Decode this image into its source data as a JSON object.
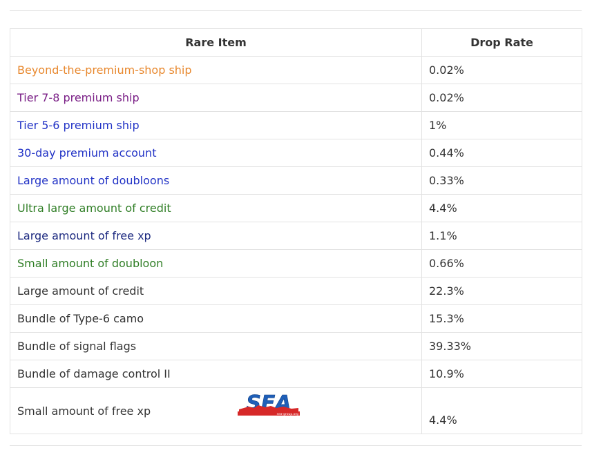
{
  "table": {
    "headers": [
      "Rare Item",
      "Drop Rate"
    ],
    "rows": [
      {
        "item": "Beyond-the-premium-shop ship",
        "rate": "0.02%",
        "color": "#e8882e"
      },
      {
        "item": "Tier 7-8 premium ship",
        "rate": "0.02%",
        "color": "#7a1f86"
      },
      {
        "item": "Tier 5-6 premium ship",
        "rate": "1%",
        "color": "#2233c6"
      },
      {
        "item": "30-day premium account",
        "rate": "0.44%",
        "color": "#2233c6"
      },
      {
        "item": "Large amount of doubloons",
        "rate": "0.33%",
        "color": "#2233c6"
      },
      {
        "item": "Ultra large amount of credit",
        "rate": "4.4%",
        "color": "#2e7d24"
      },
      {
        "item": "Large amount of free xp",
        "rate": "1.1%",
        "color": "#1d2a80"
      },
      {
        "item": "Small amount of doubloon",
        "rate": "0.66%",
        "color": "#2e7d24"
      },
      {
        "item": "Large amount of credit",
        "rate": "22.3%",
        "color": "#333333"
      },
      {
        "item": "Bundle of Type-6 camo",
        "rate": "15.3%",
        "color": "#333333"
      },
      {
        "item": "Bundle of signal flags",
        "rate": "39.33%",
        "color": "#333333"
      },
      {
        "item": "Bundle of damage control II",
        "rate": "10.9%",
        "color": "#333333"
      },
      {
        "item": "Small amount of free xp",
        "rate": "4.4%",
        "color": "#333333"
      }
    ]
  },
  "watermark": {
    "text": "SEA",
    "subtext": "sea-group.org",
    "colors": {
      "blue": "#1f5fb8",
      "red": "#d62828"
    }
  }
}
